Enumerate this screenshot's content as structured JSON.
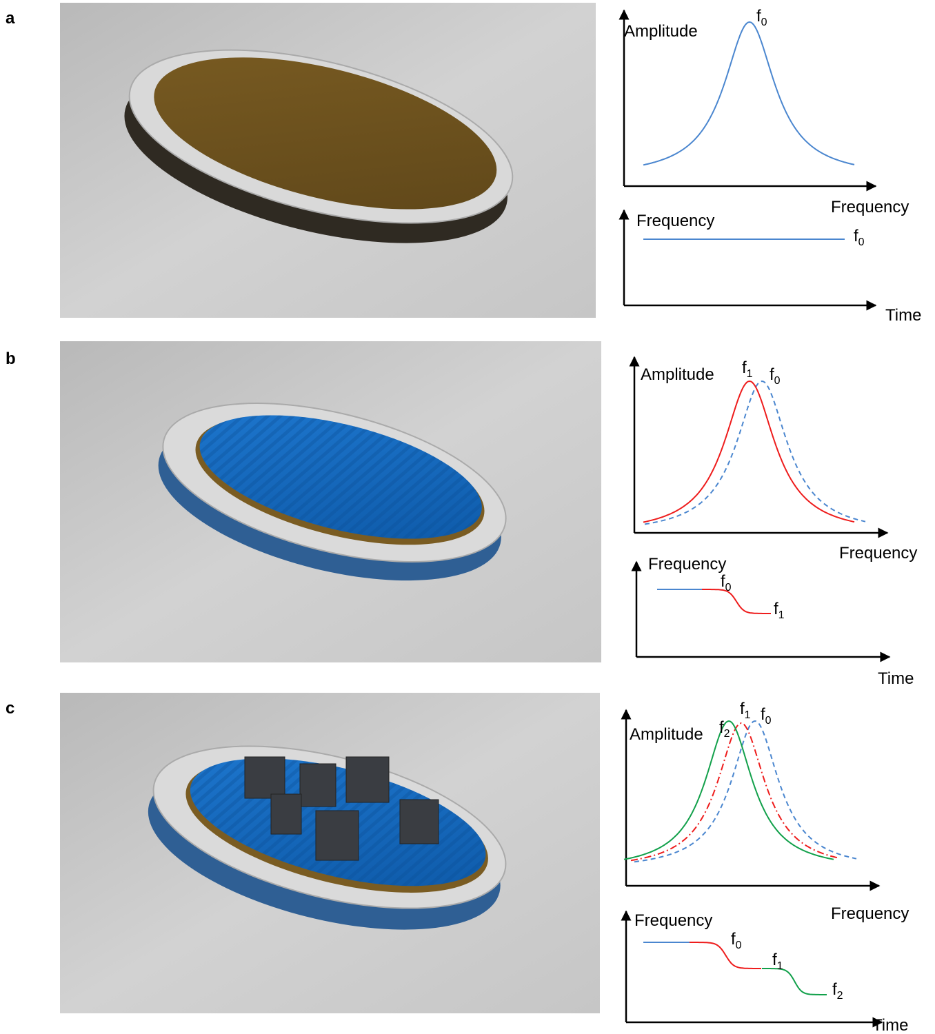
{
  "panels": [
    {
      "label": "a",
      "amplitude_plot": {
        "y_label": "Amplitude",
        "x_label": "Frequency",
        "peaks": [
          {
            "symbol": "f",
            "sub": "0"
          }
        ]
      },
      "time_plot": {
        "y_label": "Frequency",
        "x_label": "Time",
        "levels": [
          {
            "symbol": "f",
            "sub": "0"
          }
        ]
      }
    },
    {
      "label": "b",
      "amplitude_plot": {
        "y_label": "Amplitude",
        "x_label": "Frequency",
        "peaks": [
          {
            "symbol": "f",
            "sub": "1"
          },
          {
            "symbol": "f",
            "sub": "0"
          }
        ]
      },
      "time_plot": {
        "y_label": "Frequency",
        "x_label": "Time",
        "levels": [
          {
            "symbol": "f",
            "sub": "0"
          },
          {
            "symbol": "f",
            "sub": "1"
          }
        ]
      }
    },
    {
      "label": "c",
      "amplitude_plot": {
        "y_label": "Amplitude",
        "x_label": "Frequency",
        "peaks": [
          {
            "symbol": "f",
            "sub": "2"
          },
          {
            "symbol": "f",
            "sub": "1"
          },
          {
            "symbol": "f",
            "sub": "0"
          }
        ]
      },
      "time_plot": {
        "y_label": "Frequency",
        "x_label": "Time",
        "levels": [
          {
            "symbol": "f",
            "sub": "0"
          },
          {
            "symbol": "f",
            "sub": "1"
          },
          {
            "symbol": "f",
            "sub": "2"
          }
        ]
      }
    }
  ]
}
